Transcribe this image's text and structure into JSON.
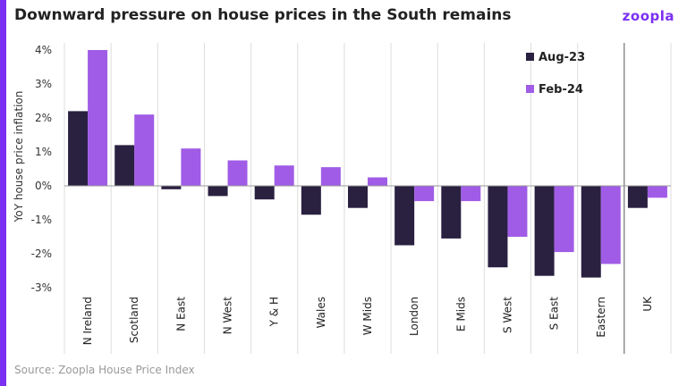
{
  "header": {
    "title": "Downward pressure on house prices in the South remains",
    "logo": "zoopla"
  },
  "footer": {
    "source": "Source: Zoopla House Price Index"
  },
  "colors": {
    "aug": "#2a2040",
    "feb": "#a05ce6",
    "accent": "#7b2ff2"
  },
  "chart_data": {
    "type": "bar",
    "title": "Downward pressure on house prices in the South remains",
    "ylabel": "YoY house price inflation",
    "ylim": [
      -3,
      4
    ],
    "yticks": [
      "4%",
      "3%",
      "2%",
      "1%",
      "0%",
      "-1%",
      "-2%",
      "-3%"
    ],
    "categories": [
      "N Ireland",
      "Scotland",
      "N East",
      "N West",
      "Y & H",
      "Wales",
      "W Mids",
      "London",
      "E Mids",
      "S West",
      "S East",
      "Eastern",
      "UK"
    ],
    "series": [
      {
        "name": "Aug-23",
        "values": [
          2.2,
          1.2,
          -0.1,
          -0.3,
          -0.4,
          -0.85,
          -0.65,
          -1.75,
          -1.55,
          -2.4,
          -2.65,
          -2.7,
          -0.65
        ]
      },
      {
        "name": "Feb-24",
        "values": [
          4.0,
          2.1,
          1.1,
          0.75,
          0.6,
          0.55,
          0.25,
          -0.45,
          -0.45,
          -1.5,
          -1.95,
          -2.3,
          -0.35
        ]
      }
    ],
    "legend": "top-right",
    "grid": false
  }
}
